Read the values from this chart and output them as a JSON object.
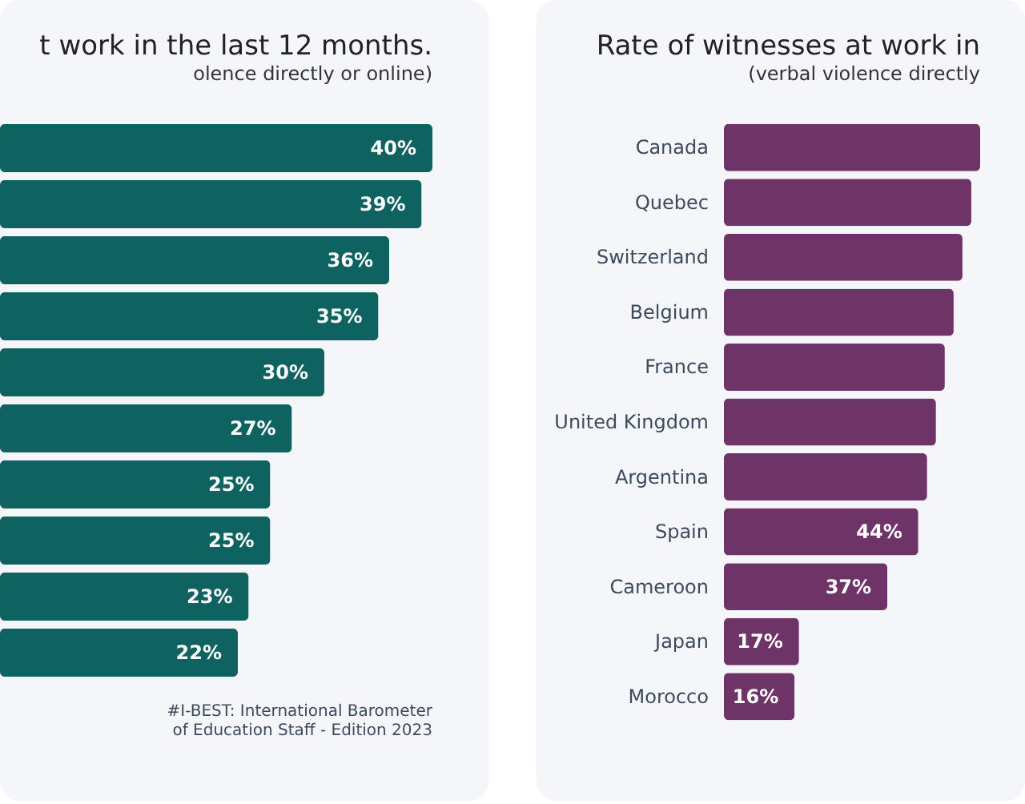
{
  "chart_data": [
    {
      "type": "bar",
      "orientation": "horizontal",
      "title": "t work in the last 12 months.",
      "subtitle": "olence directly or online)",
      "categories": [
        null,
        null,
        null,
        null,
        null,
        null,
        null,
        null,
        null,
        null
      ],
      "series": [
        {
          "color": "#0e625f",
          "values": [
            40,
            39,
            36,
            35,
            30,
            27,
            25,
            25,
            23,
            22
          ],
          "value_labels": [
            "40%",
            "39%",
            "36%",
            "35%",
            "30%",
            "27%",
            "25%",
            "25%",
            "23%",
            "22%"
          ]
        }
      ],
      "annotations": [
        "#I-BEST: International Barometer\nof Education Staff - Edition 2023"
      ]
    },
    {
      "type": "bar",
      "orientation": "horizontal",
      "title": "Rate of witnesses at work in",
      "subtitle": "(verbal violence directly",
      "categories": [
        "Canada",
        "Quebec",
        "Switzerland",
        "Belgium",
        "France",
        "United Kingdom",
        "Argentina",
        "Spain",
        "Cameroon",
        "Japan",
        "Morocco"
      ],
      "series": [
        {
          "color": "#6e3468",
          "values": [
            58,
            56,
            54,
            52,
            50,
            48,
            46,
            44,
            37,
            17,
            16
          ],
          "value_labels": [
            null,
            null,
            null,
            null,
            null,
            null,
            null,
            "44%",
            "37%",
            "17%",
            "16%"
          ]
        }
      ]
    }
  ]
}
